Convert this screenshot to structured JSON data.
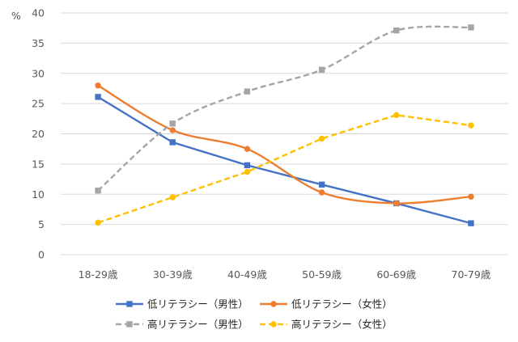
{
  "chart_data": {
    "type": "line",
    "title": "",
    "xlabel": "",
    "ylabel": "%",
    "ylim": [
      0,
      40
    ],
    "ytick_step": 5,
    "grid": "horizontal",
    "legend_position": "bottom",
    "categories": [
      "18-29歳",
      "30-39歳",
      "40-49歳",
      "50-59歳",
      "60-69歳",
      "70-79歳"
    ],
    "series": [
      {
        "name": "低リテラシー（男性）",
        "values": [
          26.1,
          18.6,
          14.8,
          11.6,
          8.5,
          5.2
        ],
        "color": "#4472c4",
        "dash": "solid",
        "marker": "square",
        "smooth": false
      },
      {
        "name": "低リテラシー（女性）",
        "values": [
          28.0,
          20.6,
          17.5,
          10.3,
          8.5,
          9.6
        ],
        "color": "#ed7d31",
        "dash": "solid",
        "marker": "circle",
        "smooth": true
      },
      {
        "name": "高リテラシー（男性）",
        "values": [
          10.6,
          21.7,
          27.0,
          30.6,
          37.1,
          37.6
        ],
        "color": "#a5a5a5",
        "dash": "dashed",
        "marker": "square",
        "smooth": true
      },
      {
        "name": "高リテラシー（女性）",
        "values": [
          5.3,
          9.5,
          13.7,
          19.2,
          23.1,
          21.4
        ],
        "color": "#ffc000",
        "dash": "dashed",
        "marker": "circle",
        "smooth": false
      }
    ]
  }
}
